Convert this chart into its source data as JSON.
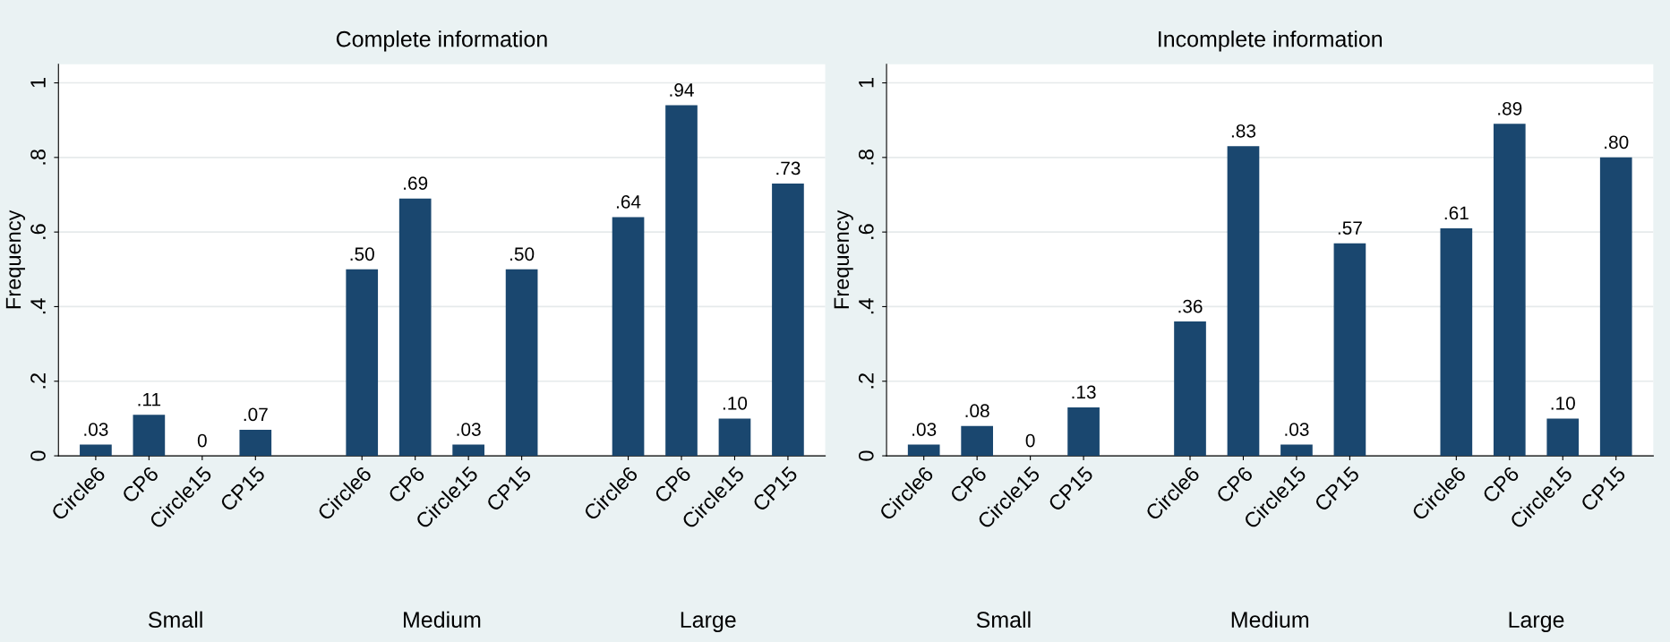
{
  "chart_data": [
    {
      "type": "bar",
      "title": "Complete information",
      "ylabel": "Frequency",
      "categories": [
        "Circle6",
        "CP6",
        "Circle15",
        "CP15",
        "Circle6",
        "CP6",
        "Circle15",
        "CP15",
        "Circle6",
        "CP6",
        "Circle15",
        "CP15"
      ],
      "annotations": [
        "Small",
        "Medium",
        "Large"
      ],
      "values": [
        0.03,
        0.11,
        0,
        0.07,
        0.5,
        0.69,
        0.03,
        0.5,
        0.64,
        0.94,
        0.1,
        0.73
      ],
      "value_labels": [
        ".03",
        ".11",
        "0",
        ".07",
        ".50",
        ".69",
        ".03",
        ".50",
        ".64",
        ".94",
        ".10",
        ".73"
      ],
      "color": "#1a476f",
      "ylim": [
        0,
        1.05
      ],
      "yticks": [
        0,
        {
          "value": 0.2,
          "label": ".2"
        },
        {
          "value": 0.4,
          "label": ".4"
        },
        {
          "value": 0.6,
          "label": ".6"
        },
        {
          "value": 0.8,
          "label": ".8"
        },
        1
      ],
      "grid": "y"
    },
    {
      "type": "bar",
      "title": "Incomplete information",
      "ylabel": "Frequency",
      "categories": [
        "Circle6",
        "CP6",
        "Circle15",
        "CP15",
        "Circle6",
        "CP6",
        "Circle15",
        "CP15",
        "Circle6",
        "CP6",
        "Circle15",
        "CP15"
      ],
      "annotations": [
        "Small",
        "Medium",
        "Large"
      ],
      "values": [
        0.03,
        0.08,
        0,
        0.13,
        0.36,
        0.83,
        0.03,
        0.57,
        0.61,
        0.89,
        0.1,
        0.8
      ],
      "value_labels": [
        ".03",
        ".08",
        "0",
        ".13",
        ".36",
        ".83",
        ".03",
        ".57",
        ".61",
        ".89",
        ".10",
        ".80"
      ],
      "color": "#1a476f",
      "ylim": [
        0,
        1.05
      ],
      "yticks": [
        0,
        {
          "value": 0.2,
          "label": ".2"
        },
        {
          "value": 0.4,
          "label": ".4"
        },
        {
          "value": 0.6,
          "label": ".6"
        },
        {
          "value": 0.8,
          "label": ".8"
        },
        1
      ],
      "grid": "y"
    }
  ]
}
